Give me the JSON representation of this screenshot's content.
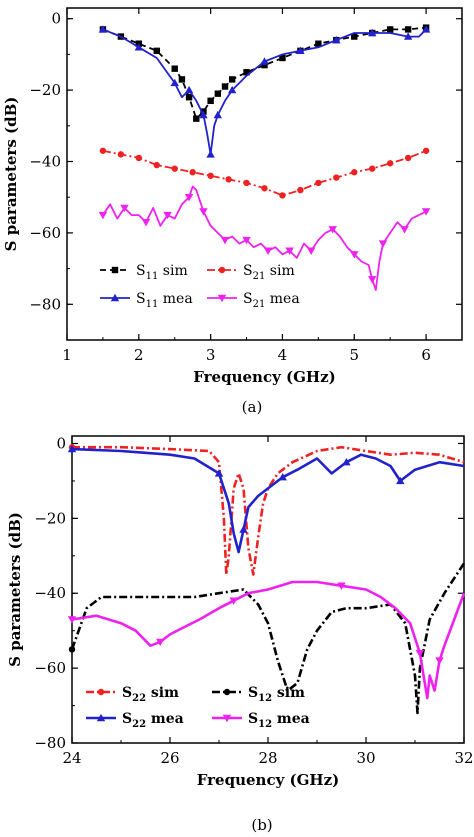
{
  "chart_data": [
    {
      "type": "line",
      "panel_label": "(a)",
      "xlabel": "Frequency (GHz)",
      "ylabel": "S parameters (dB)",
      "xlim": [
        1,
        6.5
      ],
      "ylim": [
        -90,
        3
      ],
      "xticks": [
        "1",
        "2",
        "3",
        "4",
        "5",
        "6"
      ],
      "yticks": [
        "0",
        "−20",
        "−40",
        "−60",
        "−80"
      ],
      "grid": false,
      "legend_placement": "bottom-left",
      "series": [
        {
          "name": "S11 sim",
          "name_main": "S",
          "name_sub": "11",
          "name_suffix": " sim",
          "color": "#000000",
          "dash": "6,4",
          "marker": "square",
          "x": [
            1.5,
            1.75,
            2.0,
            2.25,
            2.5,
            2.6,
            2.7,
            2.8,
            2.9,
            3.0,
            3.1,
            3.2,
            3.3,
            3.5,
            3.75,
            4.0,
            4.25,
            4.5,
            4.75,
            5.0,
            5.25,
            5.5,
            5.75,
            6.0
          ],
          "y": [
            -3,
            -5,
            -7,
            -9,
            -14,
            -17,
            -22,
            -28,
            -26,
            -23,
            -21,
            -19,
            -17,
            -15,
            -13,
            -11,
            -9,
            -7,
            -6,
            -5,
            -4,
            -3,
            -3,
            -2.5
          ]
        },
        {
          "name": "S21 sim",
          "name_main": "S",
          "name_sub": "21",
          "name_suffix": " sim",
          "color": "#ee2222",
          "dash": "8,3,2,3",
          "marker": "circle",
          "x": [
            1.5,
            1.75,
            2.0,
            2.25,
            2.5,
            2.75,
            3.0,
            3.25,
            3.5,
            3.75,
            4.0,
            4.25,
            4.5,
            4.75,
            5.0,
            5.25,
            5.5,
            5.75,
            6.0
          ],
          "y": [
            -37,
            -38,
            -39,
            -41,
            -42,
            -43,
            -44,
            -45,
            -46,
            -47.5,
            -49.5,
            -48,
            -46,
            -44.5,
            -43,
            -42,
            -40.5,
            -39,
            -37
          ]
        },
        {
          "name": "S11 mea",
          "name_main": "S",
          "name_sub": "11",
          "name_suffix": " mea",
          "color": "#2222cc",
          "dash": "",
          "marker": "triangle-up",
          "x": [
            1.5,
            1.75,
            2.0,
            2.25,
            2.5,
            2.6,
            2.7,
            2.8,
            2.9,
            2.95,
            3.0,
            3.05,
            3.1,
            3.2,
            3.3,
            3.5,
            3.75,
            4.0,
            4.25,
            4.5,
            4.75,
            5.0,
            5.25,
            5.5,
            5.75,
            5.9,
            6.0
          ],
          "y": [
            -3,
            -5,
            -8,
            -11,
            -18,
            -22,
            -20,
            -23,
            -27,
            -32,
            -38,
            -30,
            -27,
            -23,
            -20,
            -16,
            -12,
            -10,
            -9,
            -8,
            -6,
            -4,
            -4,
            -4,
            -5,
            -5,
            -3
          ]
        },
        {
          "name": "S21 mea",
          "name_main": "S",
          "name_sub": "21",
          "name_suffix": " mea",
          "color": "#ee22ee",
          "dash": "",
          "marker": "triangle-down",
          "x": [
            1.5,
            1.6,
            1.7,
            1.8,
            1.9,
            2.0,
            2.1,
            2.2,
            2.3,
            2.4,
            2.5,
            2.6,
            2.7,
            2.75,
            2.8,
            2.9,
            3.0,
            3.1,
            3.2,
            3.3,
            3.4,
            3.5,
            3.6,
            3.7,
            3.8,
            3.9,
            4.0,
            4.1,
            4.2,
            4.3,
            4.4,
            4.5,
            4.6,
            4.7,
            4.8,
            4.9,
            5.0,
            5.1,
            5.2,
            5.25,
            5.3,
            5.35,
            5.4,
            5.5,
            5.6,
            5.7,
            5.8,
            5.9,
            6.0
          ],
          "y": [
            -55,
            -52,
            -56,
            -53,
            -55,
            -55,
            -57,
            -53,
            -58,
            -55,
            -56,
            -52,
            -50,
            -47,
            -48,
            -54,
            -58,
            -60,
            -62,
            -61,
            -63,
            -62,
            -64,
            -63,
            -65,
            -64,
            -66,
            -65,
            -67,
            -63,
            -65,
            -62,
            -60,
            -59,
            -61,
            -64,
            -66,
            -68,
            -69,
            -73,
            -76,
            -68,
            -63,
            -60,
            -57,
            -59,
            -56,
            -55,
            -54
          ]
        }
      ]
    },
    {
      "type": "line",
      "panel_label": "(b)",
      "xlabel": "Frequency (GHz)",
      "ylabel": "S parameters (dB)",
      "xlim": [
        24,
        32
      ],
      "ylim": [
        -80,
        2
      ],
      "xticks": [
        "24",
        "26",
        "28",
        "30",
        "32"
      ],
      "yticks": [
        "0",
        "−20",
        "−40",
        "−60",
        "−80"
      ],
      "grid": false,
      "legend_placement": "bottom-left",
      "series": [
        {
          "name": "S22 sim",
          "name_main": "S",
          "name_sub": "22",
          "name_suffix": " sim",
          "color": "#ee2222",
          "dash": "8,3,2,3",
          "marker": "circle",
          "x": [
            24.0,
            25.0,
            26.0,
            26.8,
            27.0,
            27.1,
            27.15,
            27.2,
            27.3,
            27.4,
            27.5,
            27.6,
            27.7,
            27.8,
            27.9,
            28.0,
            28.2,
            28.5,
            29.0,
            29.5,
            30.0,
            30.5,
            31.0,
            31.5,
            32.0
          ],
          "y": [
            -1,
            -1,
            -1.5,
            -2,
            -5,
            -20,
            -35,
            -30,
            -12,
            -8,
            -12,
            -28,
            -35,
            -25,
            -16,
            -12,
            -8,
            -5,
            -2,
            -1,
            -2,
            -3,
            -2.5,
            -3,
            -5
          ]
        },
        {
          "name": "S12 sim",
          "name_main": "S",
          "name_sub": "12",
          "name_suffix": " sim",
          "color": "#000000",
          "dash": "8,3,2,3",
          "marker": "circle",
          "x": [
            24.0,
            24.3,
            24.6,
            25.0,
            25.5,
            26.0,
            26.5,
            27.0,
            27.5,
            27.8,
            28.0,
            28.2,
            28.4,
            28.6,
            28.8,
            29.0,
            29.3,
            29.6,
            30.0,
            30.5,
            30.8,
            31.0,
            31.05,
            31.1,
            31.3,
            31.6,
            32.0
          ],
          "y": [
            -55,
            -44,
            -41,
            -41,
            -41,
            -41,
            -41,
            -40,
            -39,
            -43,
            -48,
            -58,
            -66,
            -64,
            -55,
            -50,
            -45,
            -44,
            -44,
            -43,
            -48,
            -62,
            -72,
            -60,
            -47,
            -40,
            -32
          ]
        },
        {
          "name": "S22 mea",
          "name_main": "S",
          "name_sub": "22",
          "name_suffix": " mea",
          "color": "#2222cc",
          "dash": "",
          "marker": "triangle-up",
          "x": [
            24.0,
            25.0,
            26.0,
            26.5,
            27.0,
            27.2,
            27.3,
            27.4,
            27.5,
            27.6,
            27.8,
            28.0,
            28.3,
            28.6,
            29.0,
            29.3,
            29.6,
            29.9,
            30.2,
            30.5,
            30.7,
            31.0,
            31.5,
            32.0
          ],
          "y": [
            -1.5,
            -2,
            -3,
            -4,
            -8,
            -16,
            -24,
            -29,
            -23,
            -17,
            -14,
            -12,
            -9,
            -7,
            -4,
            -8,
            -5,
            -3,
            -4,
            -6,
            -10,
            -7,
            -5,
            -6
          ]
        },
        {
          "name": "S12 mea",
          "name_main": "S",
          "name_sub": "12",
          "name_suffix": " mea",
          "color": "#ee22ee",
          "dash": "",
          "marker": "triangle-down",
          "x": [
            24.0,
            24.5,
            25.0,
            25.3,
            25.6,
            25.8,
            26.0,
            26.3,
            26.6,
            27.0,
            27.3,
            27.6,
            28.0,
            28.5,
            29.0,
            29.5,
            30.0,
            30.3,
            30.6,
            30.9,
            31.1,
            31.2,
            31.25,
            31.3,
            31.4,
            31.5,
            31.6,
            31.8,
            32.0
          ],
          "y": [
            -47,
            -46,
            -48,
            -50,
            -54,
            -53,
            -51,
            -49,
            -47,
            -44,
            -42,
            -40,
            -39,
            -37,
            -37,
            -38,
            -39,
            -41,
            -44,
            -48,
            -56,
            -64,
            -68,
            -62,
            -66,
            -58,
            -54,
            -47,
            -40
          ]
        }
      ]
    }
  ]
}
